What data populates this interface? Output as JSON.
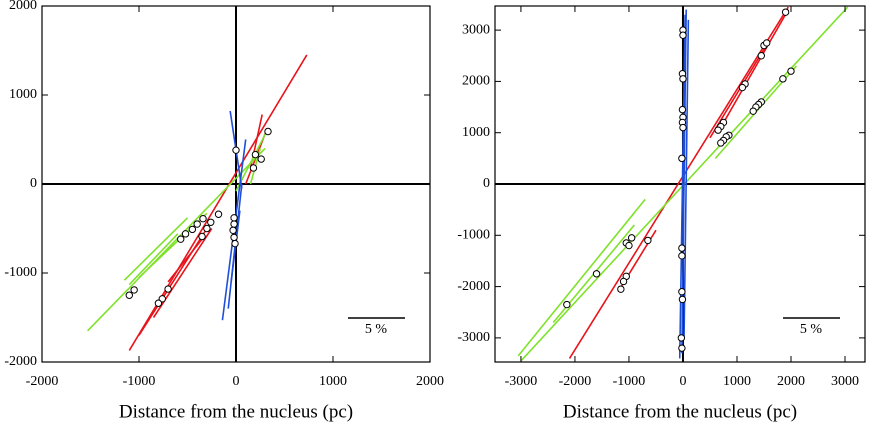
{
  "chart_data": [
    {
      "type": "scatter",
      "xlabel": "Distance from the nucleus (pc)",
      "annotation": "5 %",
      "xlim": [
        -2000,
        2000
      ],
      "ylim": [
        -2000,
        2000
      ],
      "xticks": [
        -2000,
        -1000,
        0,
        1000,
        2000
      ],
      "yticks": [
        -2000,
        -1000,
        0,
        1000,
        2000
      ],
      "series": [
        {
          "color": "#e8141b",
          "segments": [
            [
              -1100,
              -1870,
              730,
              1450
            ],
            [
              -1000,
              -1700,
              -300,
              -500
            ],
            [
              -850,
              -1500,
              -250,
              -500
            ],
            [
              -700,
              -1100,
              -350,
              -620
            ],
            [
              150,
              180,
              270,
              780
            ],
            [
              100,
              0,
              320,
              620
            ]
          ]
        },
        {
          "color": "#7fe22a",
          "segments": [
            [
              -1530,
              -1650,
              300,
              400
            ],
            [
              -1150,
              -1080,
              -500,
              -380
            ],
            [
              -1000,
              -1050,
              -300,
              -330
            ],
            [
              -1100,
              -1130,
              -600,
              -560
            ],
            [
              0,
              -80,
              330,
              620
            ],
            [
              150,
              0,
              250,
              400
            ]
          ]
        },
        {
          "color": "#1f4fd8",
          "segments": [
            [
              -140,
              -1530,
              100,
              500
            ],
            [
              -80,
              -1400,
              60,
              0
            ],
            [
              -50,
              -1100,
              40,
              -300
            ],
            [
              -60,
              820,
              60,
              -50
            ]
          ]
        }
      ],
      "points": {
        "x": [
          0,
          180,
          260,
          330,
          200,
          -20,
          -20,
          -30,
          -20,
          -10,
          -180,
          -260,
          -300,
          -350,
          -340,
          -400,
          -450,
          -520,
          -570,
          -700,
          -760,
          -800,
          -1050,
          -1100
        ],
        "y": [
          380,
          180,
          280,
          590,
          330,
          -380,
          -450,
          -520,
          -600,
          -670,
          -340,
          -430,
          -500,
          -590,
          -390,
          -450,
          -510,
          -560,
          -620,
          -1180,
          -1290,
          -1340,
          -1190,
          -1250
        ]
      }
    },
    {
      "type": "scatter",
      "xlabel": "Distance from the nucleus (pc)",
      "annotation": "5 %",
      "xlim": [
        -3480,
        3370
      ],
      "ylim": [
        -3470,
        3470
      ],
      "xticks": [
        -3000,
        -2000,
        -1000,
        0,
        1000,
        2000,
        3000
      ],
      "yticks": [
        -3000,
        -2000,
        -1000,
        0,
        1000,
        2000,
        3000
      ],
      "series": [
        {
          "color": "#e8141b",
          "segments": [
            [
              -2100,
              -3400,
              1950,
              3450
            ],
            [
              700,
              1100,
              1950,
              3400
            ],
            [
              -1200,
              -2100,
              -500,
              -900
            ],
            [
              500,
              900,
              1600,
              2800
            ]
          ]
        },
        {
          "color": "#7fe22a",
          "segments": [
            [
              -3000,
              -3450,
              3050,
              3450
            ],
            [
              -3050,
              -3350,
              -700,
              -300
            ],
            [
              600,
              500,
              2100,
              2300
            ],
            [
              -2400,
              -2700,
              -900,
              -800
            ]
          ]
        },
        {
          "color": "#1f4fd8",
          "segments": [
            [
              -60,
              -3400,
              40,
              3300
            ],
            [
              -20,
              -3300,
              60,
              3400
            ],
            [
              20,
              -3000,
              100,
              3200
            ]
          ]
        }
      ],
      "points": {
        "x": [
          0,
          0,
          -10,
          0,
          -10,
          0,
          -10,
          0,
          -20,
          -20,
          -20,
          -20,
          -10,
          -30,
          -20,
          1900,
          1500,
          1550,
          1450,
          1150,
          1100,
          750,
          700,
          650,
          -650,
          -950,
          -1050,
          -1000,
          -1050,
          -1100,
          -1150,
          2000,
          1850,
          1450,
          1400,
          1350,
          1300,
          850,
          800,
          750,
          700,
          -1600,
          -2150
        ],
        "y": [
          3000,
          2900,
          2150,
          2050,
          1450,
          1300,
          1200,
          1100,
          500,
          -1250,
          -1400,
          -2100,
          -2250,
          -3000,
          -3200,
          3350,
          2700,
          2750,
          2500,
          1950,
          1880,
          1200,
          1120,
          1050,
          -1100,
          -1050,
          -1150,
          -1200,
          -1800,
          -1900,
          -2050,
          2200,
          2050,
          1600,
          1550,
          1500,
          1420,
          950,
          920,
          850,
          800,
          -1750,
          -2350
        ]
      }
    }
  ]
}
